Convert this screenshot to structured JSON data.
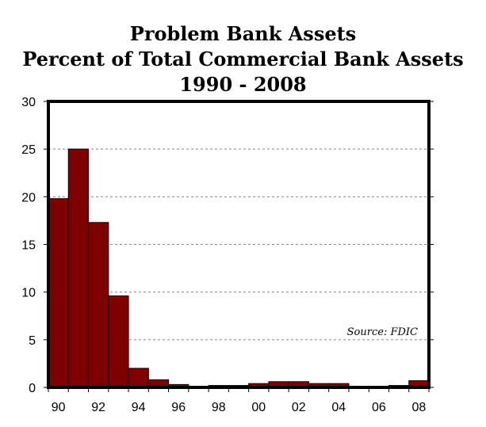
{
  "chart_data": {
    "type": "bar",
    "title_lines": [
      "Problem Bank Assets",
      "Percent of Total Commercial Bank Assets",
      "1990 - 2008"
    ],
    "xlabel": "",
    "ylabel": "",
    "categories": [
      "1990",
      "1991",
      "1992",
      "1993",
      "1994",
      "1995",
      "1996",
      "1997",
      "1998",
      "1999",
      "2000",
      "2001",
      "2002",
      "2003",
      "2004",
      "2005",
      "2006",
      "2007",
      "2008"
    ],
    "values": [
      19.8,
      25.0,
      17.3,
      9.6,
      2.0,
      0.8,
      0.3,
      0.1,
      0.2,
      0.2,
      0.4,
      0.6,
      0.6,
      0.4,
      0.4,
      0.1,
      0.1,
      0.2,
      0.7
    ],
    "x_tick_labels": [
      "90",
      "92",
      "94",
      "96",
      "98",
      "00",
      "02",
      "04",
      "06",
      "08"
    ],
    "y_tick_labels": [
      "0",
      "5",
      "10",
      "15",
      "20",
      "25",
      "30"
    ],
    "ylim": [
      0,
      30
    ],
    "grid": "horizontal dashed",
    "annotation": "Source: FDIC",
    "colors": {
      "bar_fill": "#7f0000",
      "bar_stroke": "#000000",
      "grid": "#888888",
      "frame": "#000000"
    }
  }
}
